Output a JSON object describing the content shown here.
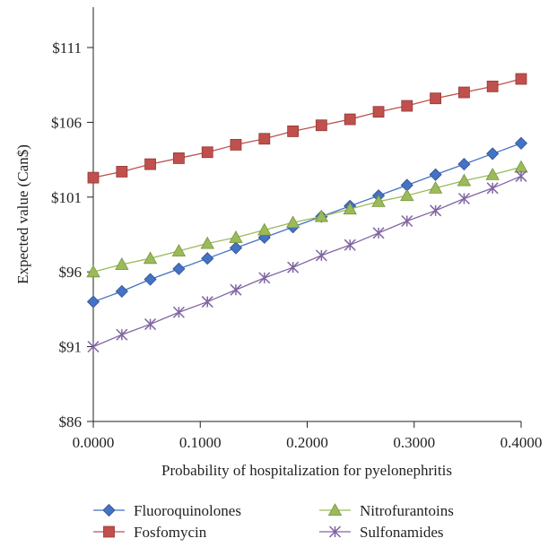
{
  "chart_data": {
    "type": "line",
    "title": "",
    "xlabel": "Probability of hospitalization for pyelonephritis",
    "ylabel": "Expected value (Can$)",
    "xlim": [
      0,
      0.4
    ],
    "ylim": [
      86,
      111
    ],
    "x_ticks": [
      0,
      0.1,
      0.2,
      0.3,
      0.4
    ],
    "x_tick_labels": [
      "0.0000",
      "0.1000",
      "0.2000",
      "0.3000",
      "0.4000"
    ],
    "y_ticks": [
      86,
      91,
      96,
      101,
      106,
      111
    ],
    "y_tick_labels": [
      "$86",
      "$91",
      "$96",
      "$101",
      "$106",
      "$111"
    ],
    "grid": false,
    "legend_position": "bottom",
    "x": [
      0,
      0.0267,
      0.0533,
      0.08,
      0.1067,
      0.1333,
      0.16,
      0.1867,
      0.2133,
      0.24,
      0.2667,
      0.2933,
      0.32,
      0.3467,
      0.3733,
      0.4
    ],
    "series": [
      {
        "name": "Fluoroquinolones",
        "color": "#4472c4",
        "marker": "diamond",
        "values": [
          94.0,
          94.7,
          95.5,
          96.2,
          96.9,
          97.6,
          98.3,
          99.0,
          99.7,
          100.4,
          101.1,
          101.8,
          102.5,
          103.2,
          103.9,
          104.6
        ]
      },
      {
        "name": "Fosfomycin",
        "color": "#c0504d",
        "marker": "square",
        "values": [
          102.3,
          102.7,
          103.2,
          103.6,
          104.0,
          104.5,
          104.9,
          105.4,
          105.8,
          106.2,
          106.7,
          107.1,
          107.6,
          108.0,
          108.4,
          108.9
        ]
      },
      {
        "name": "Nitrofurantoins",
        "color": "#9bbb59",
        "marker": "triangle",
        "values": [
          96.0,
          96.5,
          96.9,
          97.4,
          97.9,
          98.3,
          98.8,
          99.3,
          99.7,
          100.2,
          100.7,
          101.1,
          101.6,
          102.1,
          102.5,
          103.0
        ]
      },
      {
        "name": "Sulfonamides",
        "color": "#8064a2",
        "marker": "asterisk",
        "values": [
          91.0,
          91.8,
          92.5,
          93.3,
          94.0,
          94.8,
          95.6,
          96.3,
          97.1,
          97.8,
          98.6,
          99.4,
          100.1,
          100.9,
          101.6,
          102.4
        ]
      }
    ]
  }
}
